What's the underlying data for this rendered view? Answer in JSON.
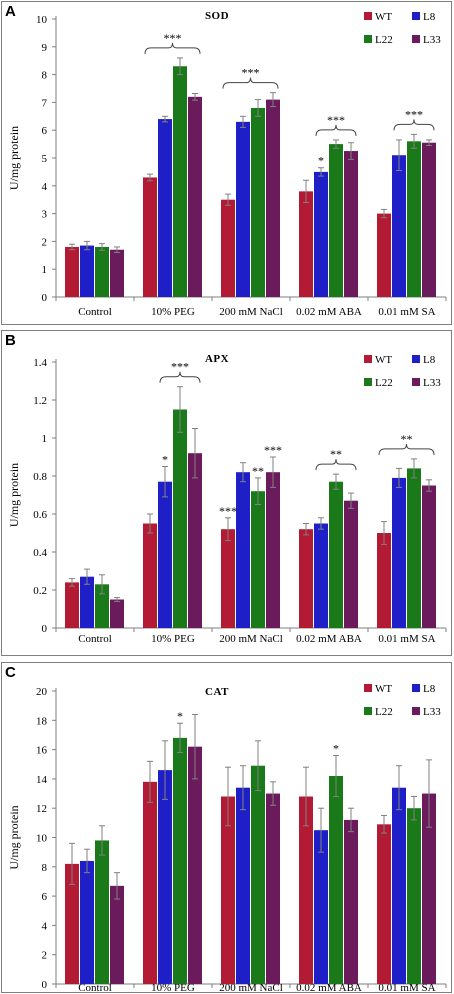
{
  "chart_data": [
    {
      "panel": "A",
      "type": "bar",
      "title": "SOD",
      "ylabel": "U/mg protein",
      "xlabel": "",
      "ylim": [
        0,
        10
      ],
      "ytick_step": 1,
      "ytick_decimals": 0,
      "legend_position": "top-right",
      "categories": [
        "Control",
        "10% PEG",
        "200 mM NaCl",
        "0.02 mM ABA",
        "0.01 mM SA"
      ],
      "series": [
        {
          "name": "WT",
          "color": "#b31b34",
          "values": [
            1.8,
            4.3,
            3.5,
            3.8,
            3.0
          ],
          "errors": [
            0.1,
            0.12,
            0.2,
            0.4,
            0.15
          ]
        },
        {
          "name": "L8",
          "color": "#1f1fc8",
          "values": [
            1.85,
            6.4,
            6.3,
            4.5,
            5.1
          ],
          "errors": [
            0.15,
            0.1,
            0.2,
            0.15,
            0.55
          ]
        },
        {
          "name": "L22",
          "color": "#1a7a1a",
          "values": [
            1.8,
            8.3,
            6.8,
            5.5,
            5.6
          ],
          "errors": [
            0.12,
            0.3,
            0.3,
            0.15,
            0.25
          ]
        },
        {
          "name": "L33",
          "color": "#6b1a5c",
          "values": [
            1.7,
            7.2,
            7.1,
            5.25,
            5.55
          ],
          "errors": [
            0.1,
            0.12,
            0.25,
            0.3,
            0.1
          ]
        }
      ],
      "annotations": [
        {
          "category": 1,
          "text": "***",
          "bracket": true
        },
        {
          "category": 2,
          "text": "***",
          "bracket": true
        },
        {
          "category": 3,
          "text": "***",
          "bracket": true,
          "from_series": 1
        },
        {
          "category": 3,
          "series": 1,
          "text": "*",
          "bracket": false
        },
        {
          "category": 4,
          "text": "***",
          "bracket": true,
          "from_series": 1
        }
      ]
    },
    {
      "panel": "B",
      "type": "bar",
      "title": "APX",
      "ylabel": "U/mg protein",
      "xlabel": "",
      "ylim": [
        0,
        1.4
      ],
      "ytick_step": 0.2,
      "ytick_decimals": 1,
      "legend_position": "top-right",
      "categories": [
        "Control",
        "10% PEG",
        "200 mM NaCl",
        "0.02 mM ABA",
        "0.01 mM SA"
      ],
      "series": [
        {
          "name": "WT",
          "color": "#b31b34",
          "values": [
            0.24,
            0.55,
            0.52,
            0.52,
            0.5
          ],
          "errors": [
            0.02,
            0.05,
            0.06,
            0.03,
            0.06
          ]
        },
        {
          "name": "L8",
          "color": "#1f1fc8",
          "values": [
            0.27,
            0.77,
            0.82,
            0.55,
            0.79
          ],
          "errors": [
            0.04,
            0.08,
            0.05,
            0.03,
            0.05
          ]
        },
        {
          "name": "L22",
          "color": "#1a7a1a",
          "values": [
            0.23,
            1.15,
            0.72,
            0.77,
            0.84
          ],
          "errors": [
            0.05,
            0.12,
            0.07,
            0.04,
            0.05
          ]
        },
        {
          "name": "L33",
          "color": "#6b1a5c",
          "values": [
            0.15,
            0.92,
            0.82,
            0.67,
            0.75
          ],
          "errors": [
            0.01,
            0.13,
            0.08,
            0.04,
            0.03
          ]
        }
      ],
      "annotations": [
        {
          "category": 1,
          "series": 1,
          "text": "*",
          "bracket": false
        },
        {
          "category": 1,
          "text": "***",
          "bracket": true,
          "from_series": 1
        },
        {
          "category": 2,
          "series": 0,
          "text": "***",
          "bracket": false
        },
        {
          "category": 2,
          "series": 2,
          "text": "**",
          "bracket": false
        },
        {
          "category": 2,
          "series": 3,
          "text": "***",
          "bracket": false
        },
        {
          "category": 3,
          "text": "**",
          "bracket": true,
          "from_series": 1
        },
        {
          "category": 4,
          "text": "**",
          "bracket": true
        }
      ]
    },
    {
      "panel": "C",
      "type": "bar",
      "title": "CAT",
      "ylabel": "U/mg protein",
      "xlabel": "",
      "ylim": [
        0,
        20
      ],
      "ytick_step": 2,
      "ytick_decimals": 0,
      "legend_position": "top-right",
      "categories": [
        "Control",
        "10% PEG",
        "200 mM NaCl",
        "0.02 mM ABA",
        "0.01 mM SA"
      ],
      "series": [
        {
          "name": "WT",
          "color": "#b31b34",
          "values": [
            8.2,
            13.8,
            12.8,
            12.8,
            10.9
          ],
          "errors": [
            1.4,
            1.4,
            2.0,
            2.0,
            0.6
          ]
        },
        {
          "name": "L8",
          "color": "#1f1fc8",
          "values": [
            8.4,
            14.6,
            13.4,
            10.5,
            13.4
          ],
          "errors": [
            0.8,
            2.0,
            1.5,
            1.5,
            1.5
          ]
        },
        {
          "name": "L22",
          "color": "#1a7a1a",
          "values": [
            9.8,
            16.8,
            14.9,
            14.2,
            12.0
          ],
          "errors": [
            1.0,
            1.0,
            1.7,
            1.4,
            0.8
          ]
        },
        {
          "name": "L33",
          "color": "#6b1a5c",
          "values": [
            6.7,
            16.2,
            13.0,
            11.2,
            13.0
          ],
          "errors": [
            0.9,
            2.2,
            0.8,
            0.8,
            2.3
          ]
        }
      ],
      "annotations": [
        {
          "category": 1,
          "series": 2,
          "text": "*",
          "bracket": false
        },
        {
          "category": 3,
          "series": 2,
          "text": "*",
          "bracket": false
        }
      ]
    }
  ]
}
